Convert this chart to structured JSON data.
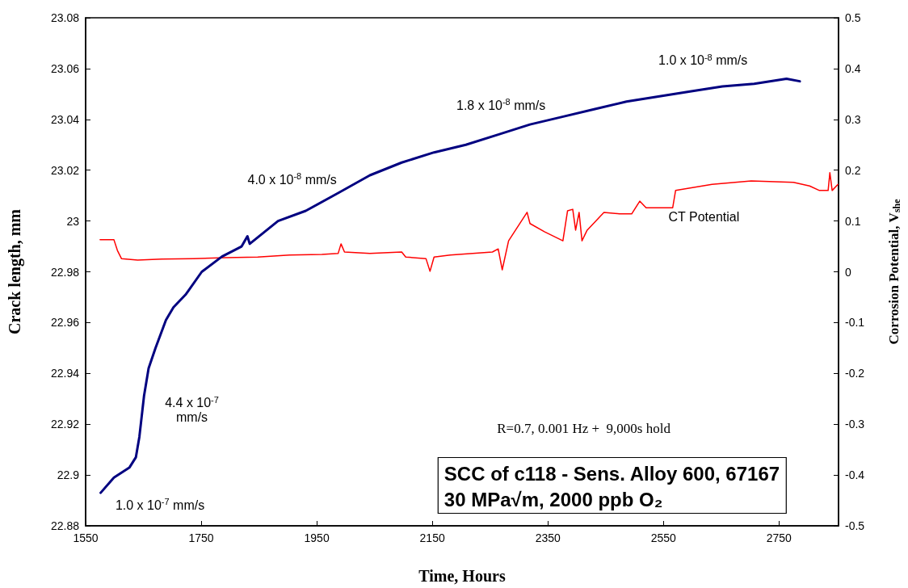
{
  "chart_data": {
    "type": "line",
    "title": "SCC of c118 - Sens. Alloy 600, 67167",
    "subtitle": "30 MPa√m, 2000 ppb O₂",
    "xlabel": "Time, Hours",
    "ylabel": "Crack length, mm",
    "y2label": "Corrosion Potential, V$_{she}$",
    "x": [
      1576,
      1599,
      1626,
      1637,
      1643,
      1651,
      1659,
      1671,
      1689,
      1702,
      1723,
      1751,
      1786,
      1820,
      1830,
      1834,
      1883,
      1931,
      1987,
      2042,
      2097,
      2153,
      2208,
      2264,
      2319,
      2375,
      2430,
      2486,
      2541,
      2596,
      2652,
      2707,
      2763,
      2786
    ],
    "series": [
      {
        "color": "#000080",
        "values": [
          22.893,
          22.899,
          22.903,
          22.907,
          22.915,
          22.931,
          22.942,
          22.95,
          22.961,
          22.966,
          22.971,
          22.98,
          22.986,
          22.99,
          22.994,
          22.991,
          23.0,
          23.004,
          23.011,
          23.018,
          23.023,
          23.027,
          23.03,
          23.034,
          23.038,
          23.041,
          23.044,
          23.047,
          23.049,
          23.051,
          23.053,
          23.054,
          23.056,
          23.055
        ]
      },
      {
        "name": "CT Potential",
        "color": "#ff0000",
        "axis": "y2",
        "x": [
          1575,
          1599,
          1605,
          1612,
          1640,
          1682,
          1737,
          1793,
          1848,
          1903,
          1959,
          1987,
          1992,
          1998,
          2042,
          2097,
          2104,
          2139,
          2146,
          2153,
          2181,
          2254,
          2264,
          2271,
          2282,
          2314,
          2319,
          2344,
          2376,
          2384,
          2393,
          2398,
          2404,
          2409,
          2418,
          2447,
          2474,
          2495,
          2509,
          2520,
          2566,
          2571,
          2634,
          2702,
          2775,
          2803,
          2820,
          2835,
          2838,
          2842,
          2852
        ],
        "values": [
          0.063,
          0.063,
          0.042,
          0.026,
          0.023,
          0.025,
          0.026,
          0.028,
          0.029,
          0.033,
          0.034,
          0.036,
          0.055,
          0.039,
          0.036,
          0.039,
          0.029,
          0.026,
          0.001,
          0.029,
          0.033,
          0.039,
          0.045,
          0.004,
          0.061,
          0.117,
          0.095,
          0.079,
          0.061,
          0.12,
          0.123,
          0.082,
          0.117,
          0.061,
          0.082,
          0.117,
          0.114,
          0.114,
          0.139,
          0.126,
          0.126,
          0.16,
          0.172,
          0.179,
          0.176,
          0.169,
          0.16,
          0.16,
          0.195,
          0.16,
          0.172
        ]
      }
    ],
    "xlim": [
      1550,
      2853
    ],
    "xticks": [
      1550,
      1750,
      1950,
      2150,
      2350,
      2550,
      2750
    ],
    "ylim": [
      22.88,
      23.08
    ],
    "yticks": [
      22.88,
      22.9,
      22.92,
      22.94,
      22.96,
      22.98,
      23,
      23.02,
      23.04,
      23.06,
      23.08
    ],
    "y2lim": [
      -0.5,
      0.5
    ],
    "y2ticks": [
      -0.5,
      -0.4,
      -0.3,
      -0.2,
      -0.1,
      0,
      0.1,
      0.2,
      0.3,
      0.4,
      0.5
    ],
    "annotations": [
      "1.0 x 10$^{-8}$ mm/s",
      "1.8 x 10$^{-8}$ mm/s",
      "4.0 x 10$^{-8}$ mm/s",
      "4.4 x 10$^{-7}$\nmm/s",
      "1.0 x 10$^{-7}$ mm/s",
      "R=0.7, 0.001 Hz +  9,000s hold"
    ],
    "grid": false,
    "legend": false,
    "marker": "none",
    "line_style": "solid"
  }
}
